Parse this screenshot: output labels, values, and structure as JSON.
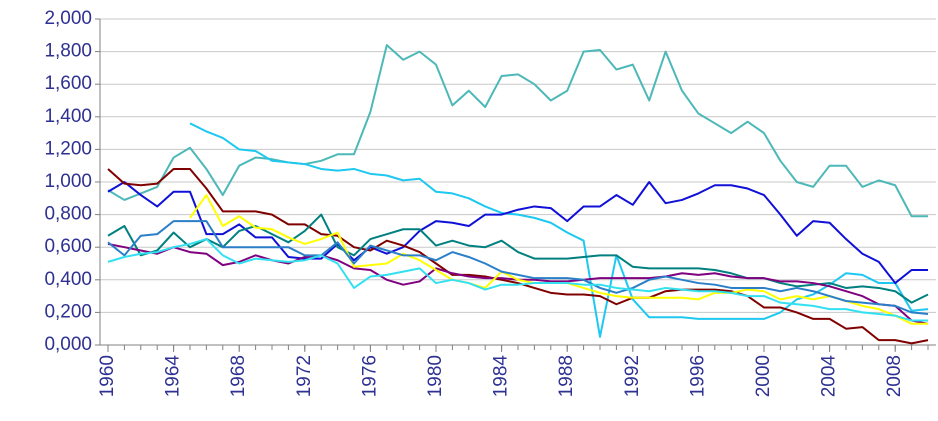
{
  "chart_data": {
    "type": "line",
    "x": [
      1960,
      1961,
      1962,
      1963,
      1964,
      1965,
      1966,
      1967,
      1968,
      1969,
      1970,
      1971,
      1972,
      1973,
      1974,
      1975,
      1976,
      1977,
      1978,
      1979,
      1980,
      1981,
      1982,
      1983,
      1984,
      1985,
      1986,
      1987,
      1988,
      1989,
      1990,
      1991,
      1992,
      1993,
      1994,
      1995,
      1996,
      1997,
      1998,
      1999,
      2000,
      2001,
      2002,
      2003,
      2004,
      2005,
      2006,
      2007,
      2008,
      2009,
      2010
    ],
    "xlim": [
      1960,
      2010
    ],
    "xticks": [
      1960,
      1964,
      1968,
      1972,
      1976,
      1980,
      1984,
      1988,
      1992,
      1996,
      2000,
      2004,
      2008
    ],
    "ylim": [
      0,
      2
    ],
    "yticks": [
      {
        "value": 0,
        "label": "0,000"
      },
      {
        "value": 0.2,
        "label": "0,200"
      },
      {
        "value": 0.4,
        "label": "0,400"
      },
      {
        "value": 0.6,
        "label": "0,600"
      },
      {
        "value": 0.8,
        "label": "0,800"
      },
      {
        "value": 1,
        "label": "1,000"
      },
      {
        "value": 1.2,
        "label": "1,200"
      },
      {
        "value": 1.4,
        "label": "1,400"
      },
      {
        "value": 1.6,
        "label": "1,600"
      },
      {
        "value": 1.8,
        "label": "1,800"
      },
      {
        "value": 2,
        "label": "2,000"
      }
    ],
    "grid": true,
    "series": [
      {
        "color": "#4db8b8",
        "values": [
          0.95,
          0.89,
          0.93,
          0.97,
          1.15,
          1.21,
          1.08,
          0.92,
          1.1,
          1.15,
          1.14,
          1.12,
          1.11,
          1.13,
          1.17,
          1.17,
          1.43,
          1.84,
          1.75,
          1.8,
          1.72,
          1.47,
          1.56,
          1.46,
          1.65,
          1.66,
          1.6,
          1.5,
          1.56,
          1.8,
          1.81,
          1.69,
          1.72,
          1.5,
          1.8,
          1.56,
          1.42,
          1.36,
          1.3,
          1.37,
          1.3,
          1.13,
          1.0,
          0.97,
          1.1,
          1.1,
          0.97,
          1.01,
          0.98,
          0.79,
          0.79
        ]
      },
      {
        "color": "#1ec8f0",
        "values": [
          null,
          null,
          null,
          null,
          null,
          1.36,
          1.31,
          1.27,
          1.2,
          1.19,
          1.13,
          1.12,
          1.11,
          1.08,
          1.07,
          1.08,
          1.05,
          1.04,
          1.01,
          1.02,
          0.94,
          0.93,
          0.9,
          0.85,
          0.81,
          0.8,
          0.78,
          0.75,
          0.69,
          0.64,
          0.05,
          0.55,
          0.28,
          0.17,
          0.17,
          0.17,
          0.16,
          0.16,
          0.16,
          0.16,
          0.16,
          0.2,
          0.28,
          0.31,
          0.37,
          0.44,
          0.43,
          0.38,
          0.38,
          0.21,
          0.22
        ]
      },
      {
        "color": "#1010d8",
        "values": [
          0.94,
          1.0,
          0.92,
          0.85,
          0.94,
          0.94,
          0.68,
          0.68,
          0.74,
          0.66,
          0.66,
          0.54,
          0.53,
          0.53,
          0.62,
          0.52,
          0.6,
          0.56,
          0.6,
          0.7,
          0.76,
          0.75,
          0.73,
          0.8,
          0.8,
          0.83,
          0.85,
          0.84,
          0.76,
          0.85,
          0.85,
          0.92,
          0.86,
          1.0,
          0.87,
          0.89,
          0.93,
          0.98,
          0.98,
          0.96,
          0.92,
          0.8,
          0.67,
          0.76,
          0.75,
          0.65,
          0.56,
          0.51,
          0.38,
          0.46,
          0.46
        ]
      },
      {
        "color": "#800000",
        "values": [
          1.08,
          0.99,
          0.98,
          0.99,
          1.08,
          1.08,
          0.96,
          0.82,
          0.82,
          0.82,
          0.8,
          0.74,
          0.74,
          0.68,
          0.67,
          0.6,
          0.58,
          0.64,
          0.61,
          0.57,
          0.5,
          0.43,
          0.43,
          0.42,
          0.4,
          0.38,
          0.35,
          0.32,
          0.31,
          0.31,
          0.3,
          0.25,
          0.29,
          0.29,
          0.33,
          0.34,
          0.34,
          0.34,
          0.33,
          0.3,
          0.23,
          0.23,
          0.2,
          0.16,
          0.16,
          0.1,
          0.11,
          0.03,
          0.03,
          0.01,
          0.03
        ]
      },
      {
        "color": "#008080",
        "values": [
          0.67,
          0.73,
          0.55,
          0.58,
          0.69,
          0.6,
          0.65,
          0.6,
          0.7,
          0.73,
          0.68,
          0.63,
          0.7,
          0.8,
          0.6,
          0.55,
          0.65,
          0.68,
          0.71,
          0.71,
          0.61,
          0.64,
          0.61,
          0.6,
          0.64,
          0.57,
          0.53,
          0.53,
          0.53,
          0.54,
          0.55,
          0.55,
          0.48,
          0.47,
          0.47,
          0.47,
          0.47,
          0.46,
          0.44,
          0.41,
          0.41,
          0.38,
          0.36,
          0.37,
          0.38,
          0.35,
          0.36,
          0.35,
          0.33,
          0.26,
          0.31
        ]
      },
      {
        "color": "#800080",
        "values": [
          0.62,
          0.6,
          0.58,
          0.56,
          0.6,
          0.57,
          0.56,
          0.49,
          0.51,
          0.55,
          0.52,
          0.5,
          0.54,
          0.55,
          0.52,
          0.47,
          0.46,
          0.4,
          0.37,
          0.39,
          0.47,
          0.44,
          0.42,
          0.41,
          0.41,
          0.4,
          0.4,
          0.39,
          0.39,
          0.4,
          0.41,
          0.41,
          0.41,
          0.41,
          0.42,
          0.44,
          0.43,
          0.44,
          0.42,
          0.41,
          0.41,
          0.39,
          0.39,
          0.38,
          0.36,
          0.33,
          0.3,
          0.25,
          0.24,
          0.15,
          0.13
        ]
      },
      {
        "color": "#ffff00",
        "values": [
          null,
          null,
          null,
          null,
          null,
          0.78,
          0.92,
          0.73,
          0.79,
          0.72,
          0.71,
          0.66,
          0.62,
          0.65,
          0.69,
          0.48,
          0.49,
          0.5,
          0.56,
          0.52,
          0.46,
          0.4,
          0.38,
          0.35,
          0.45,
          0.4,
          0.38,
          0.38,
          0.38,
          0.35,
          0.32,
          0.3,
          0.29,
          0.29,
          0.29,
          0.29,
          0.28,
          0.32,
          0.32,
          0.34,
          0.33,
          0.28,
          0.3,
          0.28,
          0.3,
          0.27,
          0.24,
          0.22,
          0.18,
          0.13,
          0.13
        ]
      },
      {
        "color": "#2a7fc8",
        "values": [
          0.63,
          0.55,
          0.67,
          0.68,
          0.76,
          0.76,
          0.76,
          0.6,
          0.6,
          0.6,
          0.6,
          0.6,
          0.55,
          0.55,
          0.63,
          0.5,
          0.61,
          0.58,
          0.55,
          0.55,
          0.52,
          0.57,
          0.54,
          0.5,
          0.45,
          0.43,
          0.41,
          0.41,
          0.41,
          0.4,
          0.35,
          0.32,
          0.35,
          0.4,
          0.42,
          0.4,
          0.38,
          0.37,
          0.35,
          0.35,
          0.35,
          0.33,
          0.35,
          0.33,
          0.3,
          0.27,
          0.26,
          0.25,
          0.24,
          0.2,
          0.19
        ]
      },
      {
        "color": "#33e0f0",
        "values": [
          0.51,
          0.54,
          0.56,
          0.57,
          0.6,
          0.62,
          0.65,
          0.55,
          0.5,
          0.53,
          0.52,
          0.51,
          0.52,
          0.55,
          0.5,
          0.35,
          0.42,
          0.43,
          0.45,
          0.47,
          0.38,
          0.4,
          0.38,
          0.34,
          0.37,
          0.37,
          0.38,
          0.38,
          0.38,
          0.37,
          0.37,
          0.35,
          0.34,
          0.33,
          0.35,
          0.34,
          0.33,
          0.33,
          0.32,
          0.3,
          0.3,
          0.26,
          0.25,
          0.24,
          0.22,
          0.22,
          0.2,
          0.19,
          0.18,
          0.15,
          0.15
        ]
      }
    ]
  }
}
